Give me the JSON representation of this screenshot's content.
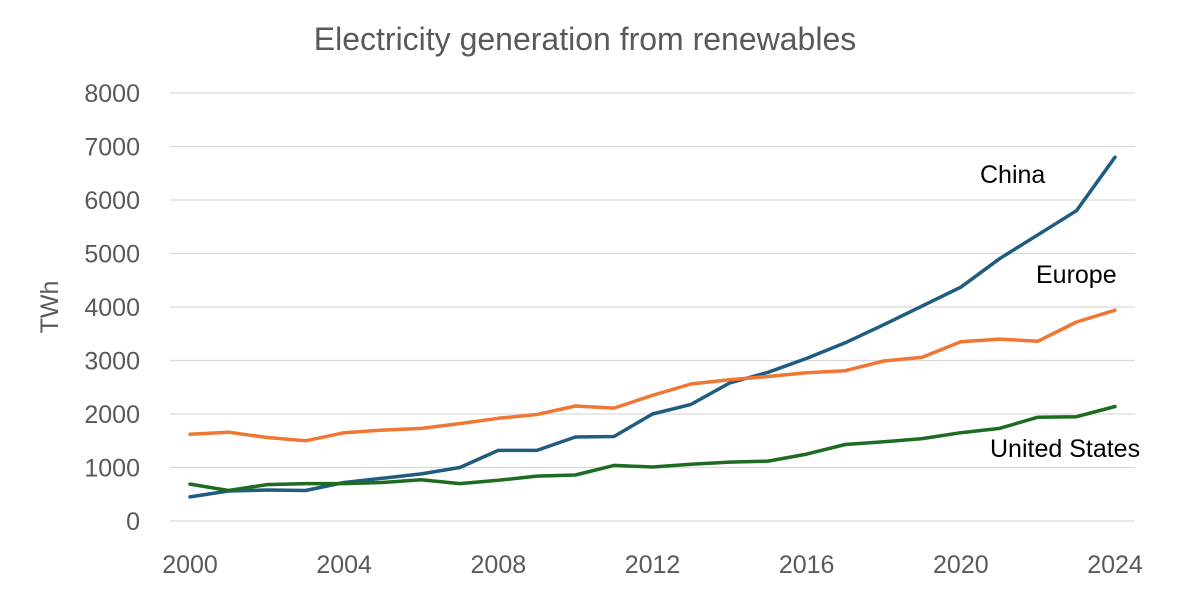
{
  "chart_data": {
    "type": "line",
    "title": "Electricity generation from renewables",
    "xlabel": "",
    "ylabel": "TWh",
    "xlim": [
      2000,
      2024
    ],
    "ylim": [
      0,
      8000
    ],
    "grid": true,
    "xticks": [
      2000,
      2004,
      2008,
      2012,
      2016,
      2020,
      2024
    ],
    "yticks": [
      0,
      1000,
      2000,
      3000,
      4000,
      5000,
      6000,
      7000,
      8000
    ],
    "x": [
      2000,
      2001,
      2002,
      2003,
      2004,
      2005,
      2006,
      2007,
      2008,
      2009,
      2010,
      2011,
      2012,
      2013,
      2014,
      2015,
      2016,
      2017,
      2018,
      2019,
      2020,
      2021,
      2022,
      2023,
      2024
    ],
    "series": [
      {
        "name": "China",
        "color": "#1f5c80",
        "values": [
          450,
          560,
          580,
          570,
          720,
          800,
          880,
          1000,
          1320,
          1320,
          1570,
          1580,
          2000,
          2180,
          2580,
          2780,
          3040,
          3330,
          3670,
          4020,
          4370,
          4900,
          5350,
          5800,
          6800
        ]
      },
      {
        "name": "Europe",
        "color": "#ee7733",
        "values": [
          1620,
          1660,
          1560,
          1500,
          1650,
          1700,
          1730,
          1820,
          1920,
          1990,
          2150,
          2110,
          2350,
          2560,
          2640,
          2700,
          2770,
          2810,
          2990,
          3060,
          3350,
          3400,
          3360,
          3720,
          3940
        ]
      },
      {
        "name": "United States",
        "color": "#1e6b22",
        "values": [
          690,
          570,
          680,
          700,
          700,
          720,
          770,
          700,
          760,
          840,
          860,
          1040,
          1010,
          1060,
          1100,
          1120,
          1250,
          1430,
          1480,
          1540,
          1650,
          1730,
          1940,
          1950,
          2140
        ]
      }
    ],
    "legend": "inline labels near line ends"
  }
}
